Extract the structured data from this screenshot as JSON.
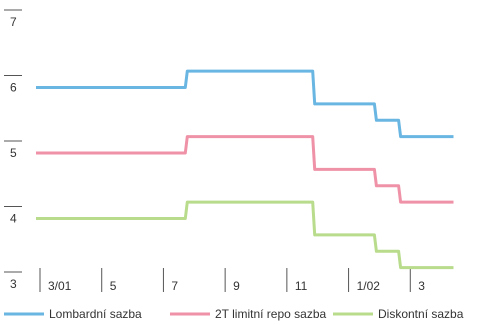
{
  "chart_data": {
    "type": "line",
    "title": "",
    "xlabel": "",
    "ylabel": "",
    "ylim": [
      3,
      7
    ],
    "y_ticks": [
      3,
      4,
      5,
      6,
      7
    ],
    "x_tick_labels": [
      "3/01",
      "5",
      "7",
      "9",
      "11",
      "1/02",
      "3"
    ],
    "grid": false,
    "legend_position": "bottom",
    "x": [
      "2001-03",
      "2001-04",
      "2001-05",
      "2001-06",
      "2001-07",
      "2001-08",
      "2001-09",
      "2001-10",
      "2001-11",
      "2001-12",
      "2002-01",
      "2002-02",
      "2002-03",
      "2002-04"
    ],
    "series": [
      {
        "name": "Lombardní sazba",
        "color": "#6ab6e2",
        "steps": [
          [
            "2001-03-01",
            6.0
          ],
          [
            "2001-07-27",
            6.25
          ],
          [
            "2001-11-30",
            5.75
          ],
          [
            "2002-01-31",
            5.5
          ],
          [
            "2002-02-22",
            5.25
          ],
          [
            "2002-04-15",
            5.25
          ]
        ]
      },
      {
        "name": "2T limitní repo sazba",
        "color": "#ef92a8",
        "steps": [
          [
            "2001-03-01",
            5.0
          ],
          [
            "2001-07-27",
            5.25
          ],
          [
            "2001-11-30",
            4.75
          ],
          [
            "2002-01-31",
            4.5
          ],
          [
            "2002-02-22",
            4.25
          ],
          [
            "2002-04-15",
            4.25
          ]
        ]
      },
      {
        "name": "Diskontní sazba",
        "color": "#b8dc8c",
        "steps": [
          [
            "2001-03-01",
            4.0
          ],
          [
            "2001-07-27",
            4.25
          ],
          [
            "2001-11-30",
            3.75
          ],
          [
            "2002-01-31",
            3.5
          ],
          [
            "2002-02-22",
            3.25
          ],
          [
            "2002-04-15",
            3.25
          ]
        ]
      }
    ]
  }
}
